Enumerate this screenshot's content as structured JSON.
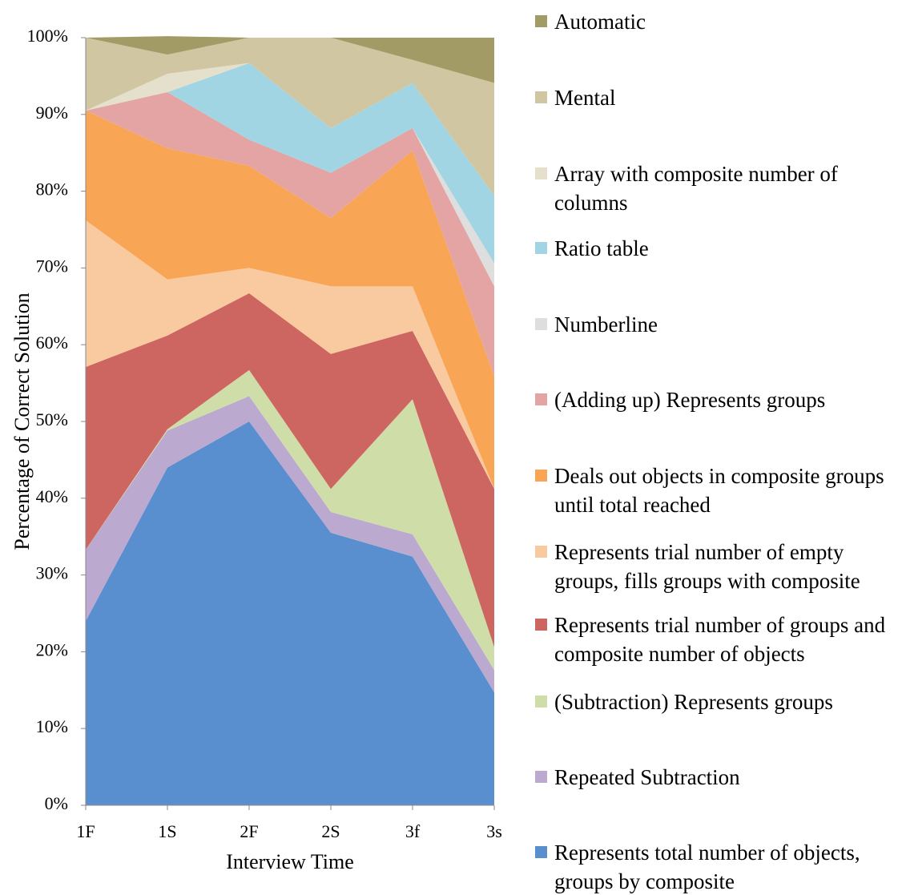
{
  "chart_data": {
    "type": "stacked_area",
    "xlabel": "Interview Time",
    "ylabel": "Percentage of Correct Solution",
    "categories": [
      "1F",
      "1S",
      "2F",
      "2S",
      "3f",
      "3s"
    ],
    "ylim": [
      0,
      100
    ],
    "yticks": [
      {
        "value": 0,
        "label": "0%"
      },
      {
        "value": 10,
        "label": "10%"
      },
      {
        "value": 20,
        "label": "20%"
      },
      {
        "value": 30,
        "label": "30%"
      },
      {
        "value": 40,
        "label": "40%"
      },
      {
        "value": 50,
        "label": "50%"
      },
      {
        "value": 60,
        "label": "60%"
      },
      {
        "value": 70,
        "label": "70%"
      },
      {
        "value": 80,
        "label": "80%"
      },
      {
        "value": 90,
        "label": "90%"
      },
      {
        "value": 100,
        "label": "100%"
      }
    ],
    "series": [
      {
        "name": "Represents total number of objects, groups by composite",
        "color": "#5a8fcf",
        "values": [
          24,
          44,
          50,
          35.5,
          32.4,
          14.7
        ]
      },
      {
        "name": "Repeated Subtraction",
        "color": "#bca9d0",
        "values": [
          9.3,
          4.8,
          3.3,
          2.7,
          2.9,
          2.9
        ]
      },
      {
        "name": "(Subtraction) Represents groups",
        "color": "#cfdda8",
        "values": [
          0,
          0.2,
          3.4,
          3,
          17.6,
          3
        ]
      },
      {
        "name": "Represents trial number of groups and composite number  of objects",
        "color": "#cd6660",
        "values": [
          23.8,
          12.2,
          10,
          17.6,
          8.9,
          20.6
        ]
      },
      {
        "name": "Represents trial number of empty groups, fills groups with composite",
        "color": "#f9c9a0",
        "values": [
          19.1,
          7.3,
          3.3,
          8.8,
          5.8,
          0
        ]
      },
      {
        "name": "Deals out objects in composite groups until total reached",
        "color": "#f8a656",
        "values": [
          14.3,
          17.1,
          13.3,
          8.9,
          17.7,
          14.7
        ]
      },
      {
        "name": "(Adding up) Represents groups",
        "color": "#e3a4a3",
        "values": [
          0,
          7.3,
          3.4,
          5.9,
          2.9,
          11.7
        ]
      },
      {
        "name": "Numberline",
        "color": "#dedede",
        "values": [
          0,
          0,
          0,
          0,
          0,
          3
        ]
      },
      {
        "name": "Ratio table",
        "color": "#a2d5e3",
        "values": [
          0,
          0,
          10,
          5.8,
          5.9,
          8.8
        ]
      },
      {
        "name": "Array with composite number of columns",
        "color": "#e4e0cc",
        "values": [
          0,
          2.4,
          0,
          0,
          0,
          0
        ]
      },
      {
        "name": "Mental",
        "color": "#d1c6a2",
        "values": [
          9.5,
          2.5,
          3.3,
          11.8,
          3,
          14.7
        ]
      },
      {
        "name": "Automatic",
        "color": "#a39b66",
        "values": [
          0,
          2.4,
          0,
          0,
          2.9,
          5.9
        ]
      }
    ]
  }
}
